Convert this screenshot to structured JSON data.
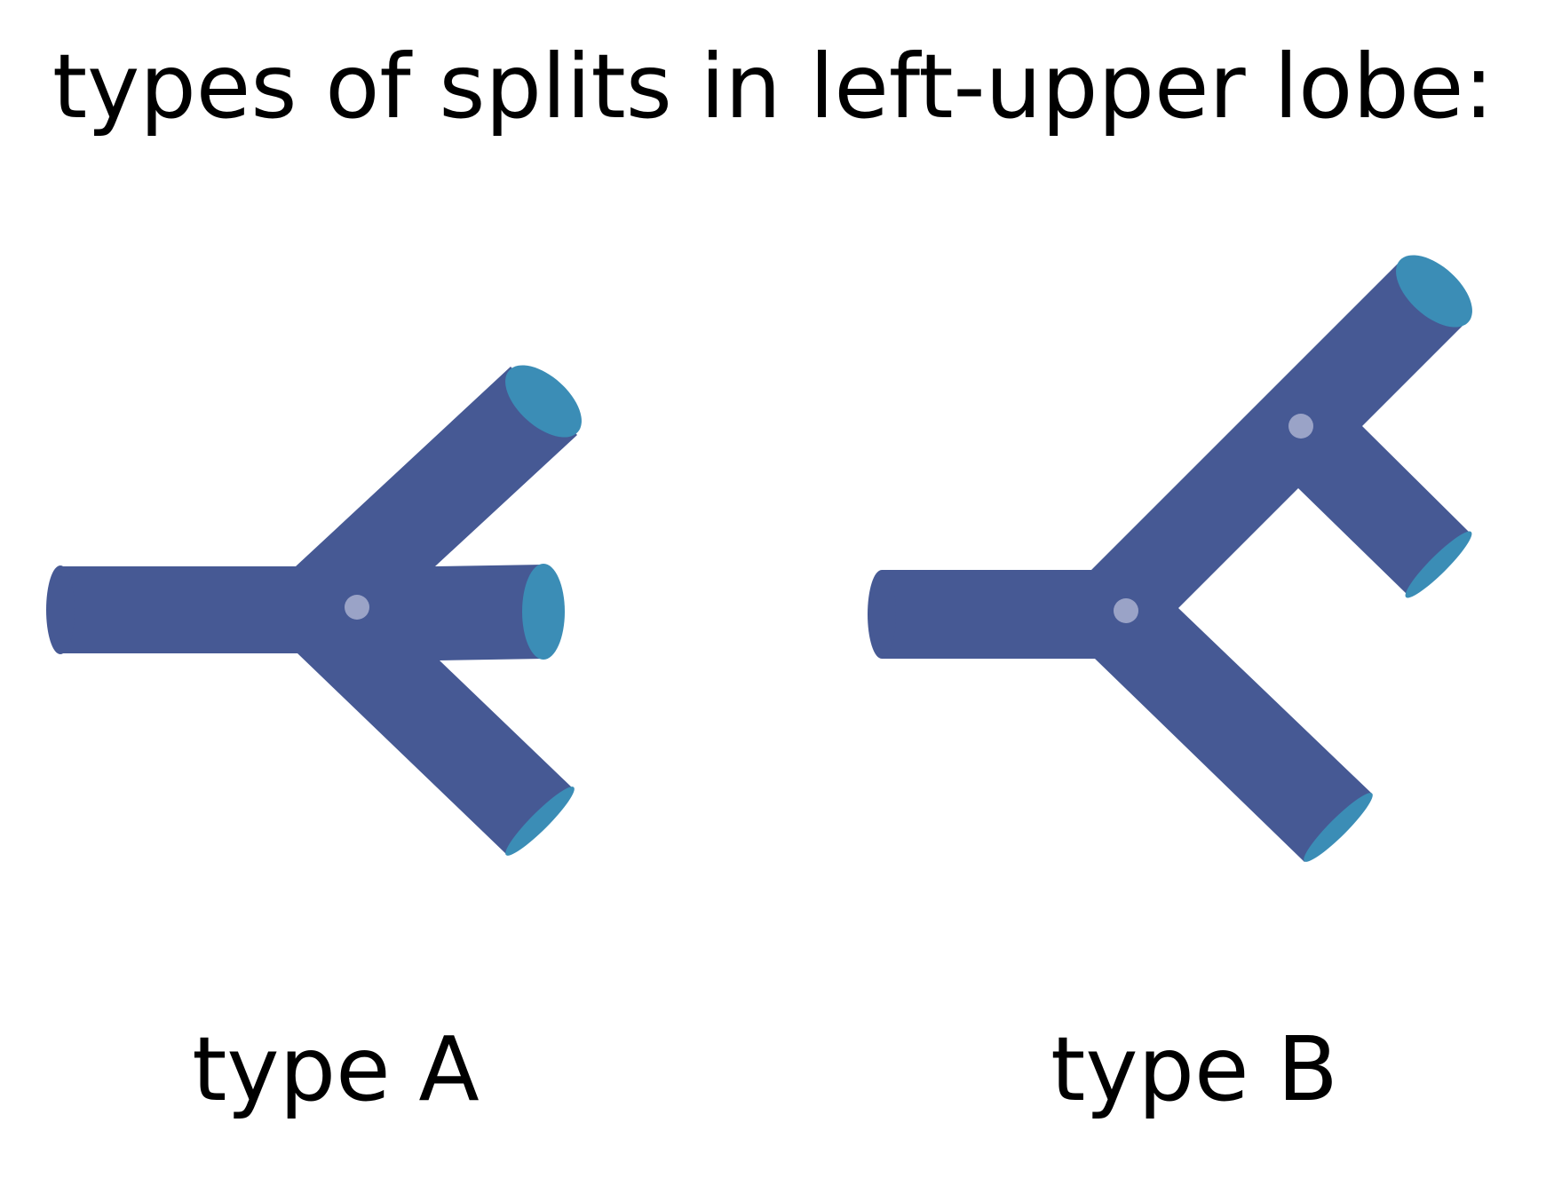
{
  "title": "types of splits in left-upper lobe:",
  "diagrams": [
    {
      "label": "type A"
    },
    {
      "label": "type B"
    }
  ],
  "colors": {
    "background": "#ffffff",
    "branch": "#465994",
    "branch_end": "#3b8db6",
    "junction_dot": "#9aa3c7",
    "text": "#000000"
  }
}
